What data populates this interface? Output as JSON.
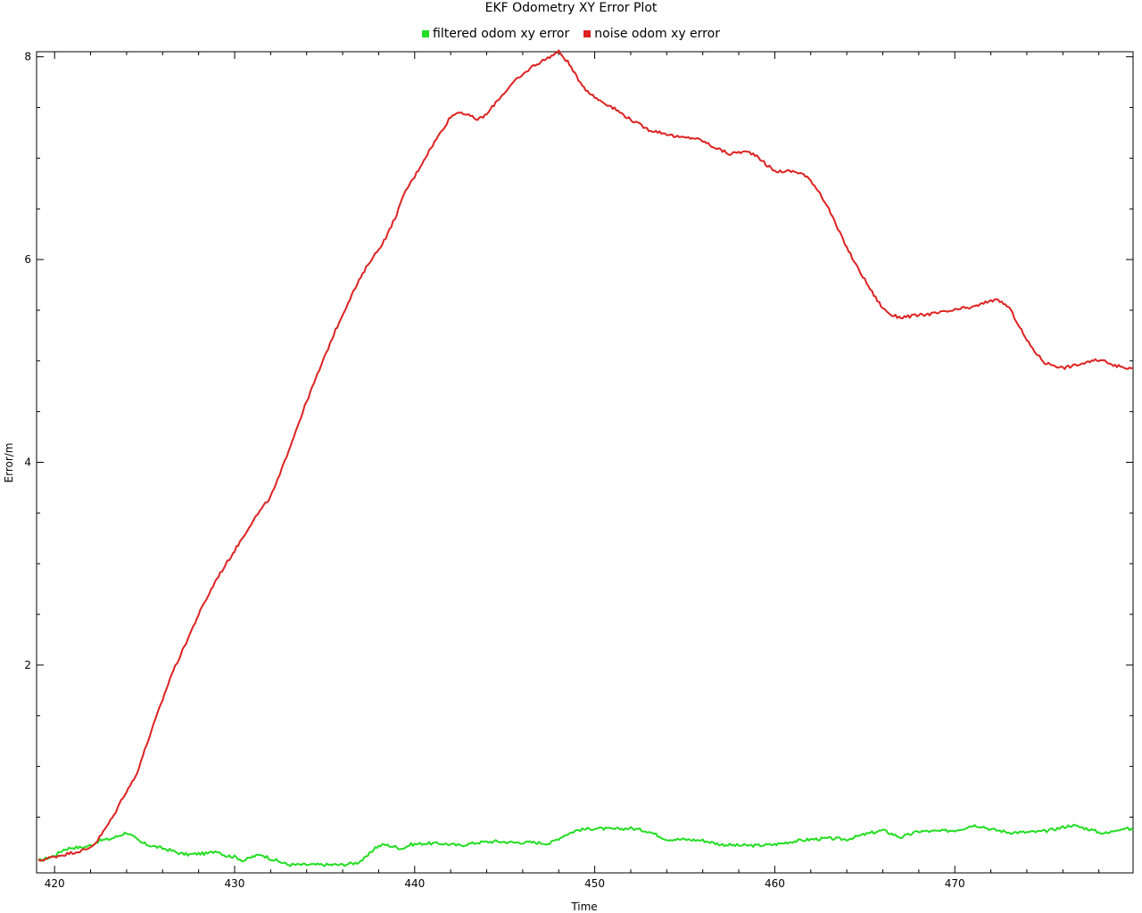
{
  "chart_data": {
    "type": "line",
    "title": "EKF Odometry XY Error Plot",
    "xlabel": "Time",
    "ylabel": "Error/m",
    "xlim": [
      419,
      479.9
    ],
    "ylim": [
      -0.05,
      8.05
    ],
    "x_ticks": [
      420,
      430,
      440,
      450,
      460,
      470
    ],
    "y_ticks": [
      2,
      4,
      6,
      8
    ],
    "grid": false,
    "legend_position": "top-center",
    "series": [
      {
        "name": "filtered odom xy error",
        "color": "#22dd22",
        "x": [
          419.1,
          419.5,
          420.0,
          420.5,
          421.0,
          421.5,
          422.0,
          422.5,
          423.0,
          423.5,
          424.0,
          424.4,
          424.8,
          425.3,
          425.8,
          426.5,
          427.0,
          427.5,
          428.0,
          428.5,
          429.0,
          429.5,
          430.0,
          430.5,
          431.0,
          431.5,
          432.0,
          432.5,
          433.0,
          433.5,
          434.0,
          434.5,
          435.0,
          436.0,
          436.8,
          437.3,
          437.8,
          438.3,
          438.8,
          439.3,
          439.8,
          440.5,
          441.5,
          442.5,
          443.5,
          444.5,
          445.5,
          446.5,
          447.5,
          448.3,
          449.0,
          450.0,
          451.0,
          452.0,
          453.0,
          454.0,
          455.0,
          456.0,
          457.0,
          458.0,
          459.0,
          460.0,
          461.0,
          462.0,
          463.0,
          464.0,
          465.0,
          466.0,
          467.0,
          468.0,
          469.0,
          470.0,
          470.5,
          471.0,
          471.5,
          472.0,
          473.0,
          474.0,
          475.0,
          476.0,
          476.5,
          477.0,
          477.5,
          478.0,
          478.5,
          479.0,
          479.5,
          479.9
        ],
        "values": [
          0.07,
          0.09,
          0.12,
          0.18,
          0.2,
          0.2,
          0.22,
          0.27,
          0.28,
          0.31,
          0.35,
          0.3,
          0.25,
          0.22,
          0.2,
          0.17,
          0.14,
          0.13,
          0.14,
          0.14,
          0.17,
          0.12,
          0.11,
          0.07,
          0.11,
          0.13,
          0.09,
          0.06,
          0.03,
          0.03,
          0.03,
          0.03,
          0.03,
          0.03,
          0.05,
          0.1,
          0.2,
          0.23,
          0.21,
          0.19,
          0.23,
          0.24,
          0.24,
          0.22,
          0.25,
          0.26,
          0.25,
          0.25,
          0.24,
          0.32,
          0.37,
          0.39,
          0.38,
          0.39,
          0.36,
          0.28,
          0.28,
          0.27,
          0.23,
          0.22,
          0.22,
          0.23,
          0.26,
          0.28,
          0.29,
          0.28,
          0.33,
          0.37,
          0.3,
          0.36,
          0.36,
          0.37,
          0.39,
          0.42,
          0.41,
          0.38,
          0.35,
          0.35,
          0.36,
          0.4,
          0.42,
          0.4,
          0.38,
          0.35,
          0.34,
          0.38,
          0.39,
          0.37
        ]
      },
      {
        "name": "noise odom xy error",
        "color": "#dd2222",
        "x": [
          419.1,
          420.0,
          421.0,
          421.8,
          422.3,
          422.8,
          423.3,
          423.8,
          424.5,
          425.2,
          426.0,
          426.5,
          427.0,
          427.5,
          428.0,
          429.0,
          430.0,
          431.0,
          432.0,
          432.5,
          433.0,
          433.5,
          434.0,
          434.5,
          435.0,
          435.5,
          436.0,
          436.5,
          437.0,
          437.5,
          438.0,
          438.5,
          439.0,
          439.5,
          440.0,
          440.5,
          441.0,
          441.5,
          442.0,
          442.5,
          443.0,
          443.5,
          444.0,
          444.5,
          445.0,
          445.5,
          446.0,
          446.5,
          447.0,
          447.5,
          448.0,
          448.5,
          449.0,
          449.5,
          450.0,
          450.5,
          451.0,
          451.5,
          452.0,
          453.0,
          454.0,
          454.5,
          455.0,
          455.5,
          456.0,
          456.5,
          457.0,
          457.5,
          458.0,
          458.5,
          459.0,
          459.5,
          460.0,
          460.5,
          461.0,
          461.5,
          462.0,
          462.5,
          463.0,
          463.5,
          464.0,
          464.5,
          465.0,
          465.5,
          466.0,
          466.5,
          467.0,
          467.5,
          468.0,
          469.0,
          470.0,
          470.5,
          471.0,
          471.5,
          472.0,
          472.5,
          473.0,
          473.5,
          474.0,
          474.5,
          475.0,
          475.5,
          476.0,
          476.5,
          477.0,
          477.5,
          478.0,
          478.5,
          479.0,
          479.5,
          479.9
        ],
        "values": [
          0.07,
          0.11,
          0.15,
          0.18,
          0.25,
          0.38,
          0.52,
          0.7,
          0.9,
          1.26,
          1.66,
          1.91,
          2.1,
          2.3,
          2.5,
          2.85,
          3.13,
          3.42,
          3.66,
          3.87,
          4.12,
          4.36,
          4.6,
          4.82,
          5.04,
          5.26,
          5.46,
          5.65,
          5.82,
          5.98,
          6.1,
          6.25,
          6.45,
          6.68,
          6.82,
          6.98,
          7.13,
          7.27,
          7.41,
          7.46,
          7.42,
          7.38,
          7.43,
          7.55,
          7.65,
          7.75,
          7.82,
          7.9,
          7.95,
          8.0,
          8.05,
          7.95,
          7.8,
          7.68,
          7.6,
          7.55,
          7.5,
          7.44,
          7.38,
          7.28,
          7.24,
          7.21,
          7.2,
          7.2,
          7.17,
          7.12,
          7.08,
          7.04,
          7.06,
          7.06,
          7.03,
          6.94,
          6.87,
          6.87,
          6.87,
          6.85,
          6.78,
          6.66,
          6.5,
          6.3,
          6.12,
          5.95,
          5.8,
          5.65,
          5.52,
          5.45,
          5.43,
          5.44,
          5.45,
          5.47,
          5.5,
          5.52,
          5.53,
          5.56,
          5.6,
          5.59,
          5.53,
          5.37,
          5.2,
          5.08,
          4.98,
          4.96,
          4.93,
          4.95,
          4.97,
          4.99,
          5.01,
          4.99,
          4.95,
          4.93,
          4.93
        ]
      }
    ]
  }
}
